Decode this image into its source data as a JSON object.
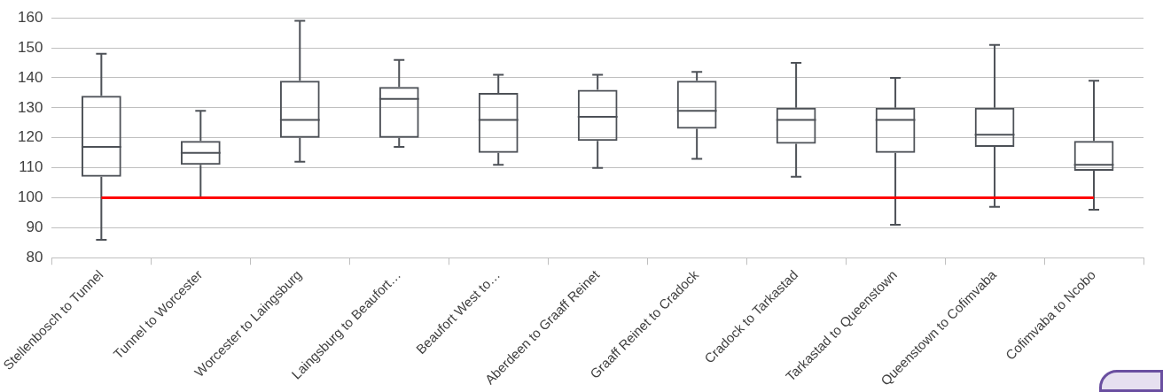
{
  "chart_data": {
    "type": "box",
    "categories": [
      "Stellenbosch to Tunnel",
      "Tunnel to Worcester",
      "Worcester to Laingsburg",
      "Laingsburg to Beaufort…",
      "Beaufort West to…",
      "Aberdeen to Graaff Reinet",
      "Graaff Reinet to Cradock",
      "Cradock to Tarkastad",
      "Tarkastad to Queenstown",
      "Queenstown to Cofimvaba",
      "Cofimvaba to Ncobo"
    ],
    "boxes": [
      {
        "low": 86,
        "q1": 107,
        "median": 117,
        "q3": 134,
        "high": 148
      },
      {
        "low": 100,
        "q1": 111,
        "median": 115,
        "q3": 119,
        "high": 129
      },
      {
        "low": 112,
        "q1": 120,
        "median": 126,
        "q3": 139,
        "high": 159
      },
      {
        "low": 117,
        "q1": 120,
        "median": 133,
        "q3": 137,
        "high": 146
      },
      {
        "low": 111,
        "q1": 115,
        "median": 126,
        "q3": 135,
        "high": 141
      },
      {
        "low": 110,
        "q1": 119,
        "median": 127,
        "q3": 136,
        "high": 141
      },
      {
        "low": 113,
        "q1": 123,
        "median": 129,
        "q3": 139,
        "high": 142
      },
      {
        "low": 107,
        "q1": 118,
        "median": 126,
        "q3": 130,
        "high": 145
      },
      {
        "low": 91,
        "q1": 115,
        "median": 126,
        "q3": 130,
        "high": 140
      },
      {
        "low": 97,
        "q1": 117,
        "median": 121,
        "q3": 130,
        "high": 151
      },
      {
        "low": 96,
        "q1": 109,
        "median": 111,
        "q3": 119,
        "high": 139
      }
    ],
    "color": "#4d5157",
    "ylim": [
      80,
      160
    ],
    "yticks": [
      80,
      90,
      100,
      110,
      120,
      130,
      140,
      150,
      160
    ],
    "grid": "y",
    "ref_lines": [
      {
        "axis": "y",
        "value": 100,
        "color": "#ff0000"
      }
    ]
  }
}
